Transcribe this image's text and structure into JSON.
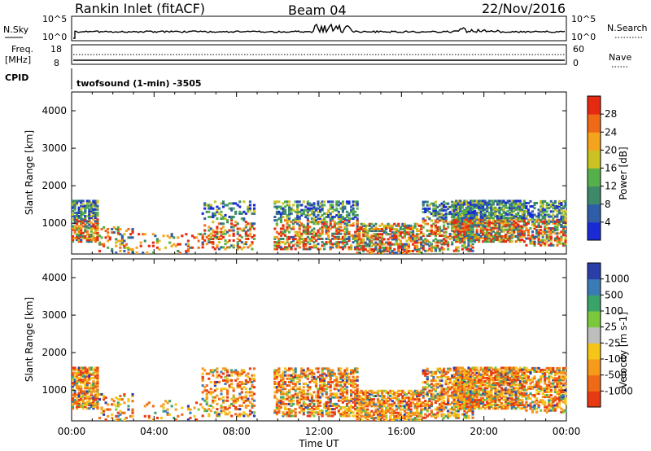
{
  "header": {
    "station": "Rankin Inlet (fitACF)",
    "beam": "Beam 04",
    "date": "22/Nov/2016"
  },
  "mini_panels": {
    "nsky_label": "N.Sky",
    "nsky_ticks": [
      "10^5",
      "10^0"
    ],
    "nsearch_label": "N.Search",
    "nsearch_ticks": [
      "10^5",
      "10^0"
    ],
    "freq_label_1": "Freq.",
    "freq_label_2": "[MHz]",
    "freq_ticks": [
      "18",
      "8"
    ],
    "nave_label": "Nave",
    "nave_ticks": [
      "60",
      "0"
    ],
    "cpid_label": "CPID",
    "cpid_text": "twofsound (1-min) -3505"
  },
  "chart_data": [
    {
      "type": "heatmap",
      "quantity": "Power",
      "ylabel": "Slant Range [km]",
      "ylim": [
        180,
        4500
      ],
      "yticks": [
        "1000",
        "2000",
        "3000",
        "4000"
      ],
      "colorbar_label": "Power [dB]",
      "colorbar_ticks": [
        "4",
        "8",
        "12",
        "16",
        "20",
        "24",
        "28"
      ],
      "colors": [
        "#1a2bd6",
        "#2f5da8",
        "#3d8a6a",
        "#55b04a",
        "#c9c222",
        "#f4a31c",
        "#ef6a16",
        "#e62a12"
      ]
    },
    {
      "type": "heatmap",
      "quantity": "Velocity",
      "ylabel": "Slant Range [km]",
      "ylim": [
        180,
        4500
      ],
      "yticks": [
        "1000",
        "2000",
        "3000",
        "4000"
      ],
      "colorbar_label": "Velocity [m s-1]",
      "colorbar_ticks": [
        "1000",
        "500",
        "100",
        "25",
        "-25",
        "-100",
        "-500",
        "-1000"
      ],
      "colors": [
        "#2b3ea8",
        "#3a7bb6",
        "#3aa36a",
        "#7cc83c",
        "#bdbdbd",
        "#f5c518",
        "#f59a1a",
        "#ef6a16",
        "#e83a12"
      ],
      "xlabel": "Time UT",
      "xticks": [
        "00:00",
        "04:00",
        "08:00",
        "12:00",
        "16:00",
        "20:00",
        "00:00"
      ]
    }
  ]
}
